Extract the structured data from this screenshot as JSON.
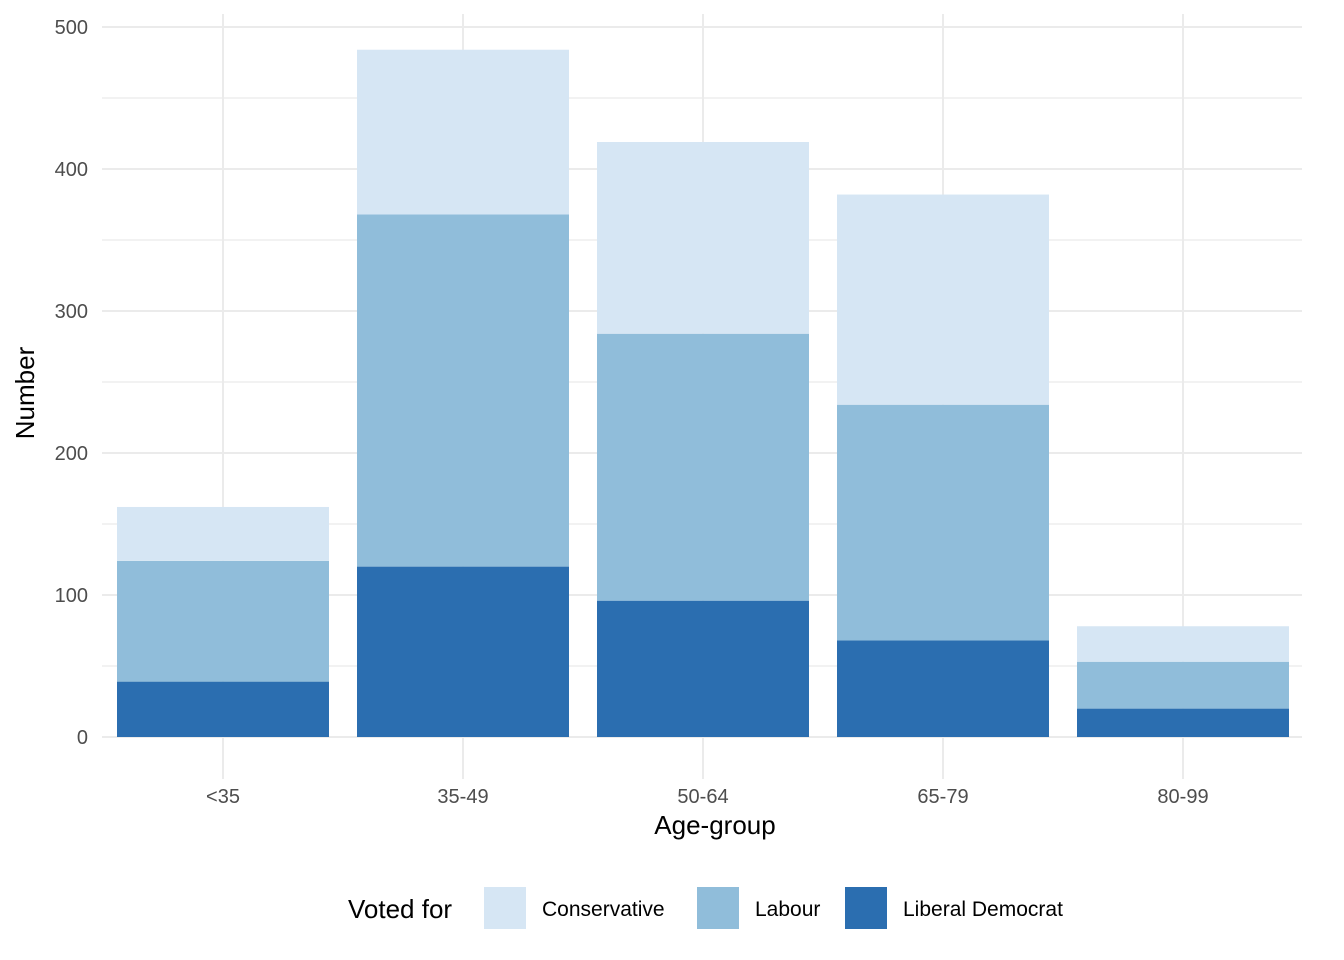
{
  "chart_data": {
    "type": "bar",
    "stacked": true,
    "title": "",
    "xlabel": "Age-group",
    "ylabel": "Number",
    "categories": [
      "<35",
      "35-49",
      "50-64",
      "65-79",
      "80-99"
    ],
    "series": [
      {
        "name": "Liberal Democrat",
        "color": "#2B6EB0",
        "values": [
          39,
          120,
          96,
          68,
          20
        ]
      },
      {
        "name": "Labour",
        "color": "#90BDDA",
        "values": [
          85,
          248,
          188,
          166,
          33
        ]
      },
      {
        "name": "Conservative",
        "color": "#D6E6F4",
        "values": [
          38,
          116,
          135,
          148,
          25
        ]
      }
    ],
    "ylim": [
      0,
      500
    ],
    "yticks": [
      0,
      100,
      200,
      300,
      400,
      500
    ],
    "grid": true,
    "legend": {
      "title": "Voted for",
      "position": "bottom",
      "entries": [
        {
          "label": "Conservative",
          "color": "#D6E6F4"
        },
        {
          "label": "Labour",
          "color": "#90BDDA"
        },
        {
          "label": "Liberal Democrat",
          "color": "#2B6EB0"
        }
      ]
    }
  }
}
